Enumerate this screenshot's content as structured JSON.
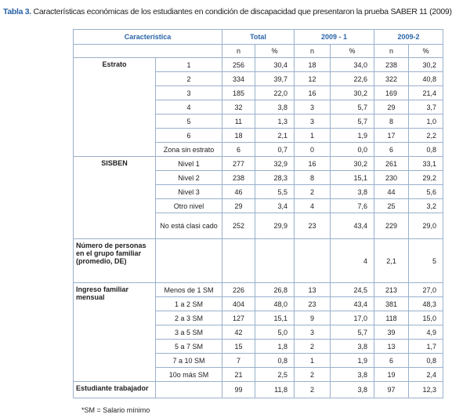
{
  "title": {
    "label": "Tabla 3.",
    "text": "Características económicas de los estudiantes en condición de discapacidad que presentaron la prueba SABER 11 (2009)"
  },
  "table": {
    "header": [
      "Característica",
      "Total",
      "2009 - 1",
      "2009-2"
    ],
    "subheader": [
      "n",
      "%",
      "n",
      "%",
      "n",
      "%"
    ],
    "groups": [
      {
        "label": "Estrato",
        "rows": [
          {
            "label": "1",
            "cells": [
              "256",
              "30,4",
              "18",
              "34,0",
              "238",
              "30,2"
            ]
          },
          {
            "label": "2",
            "cells": [
              "334",
              "39,7",
              "12",
              "22,6",
              "322",
              "40,8"
            ]
          },
          {
            "label": "3",
            "cells": [
              "185",
              "22,0",
              "16",
              "30,2",
              "169",
              "21,4"
            ]
          },
          {
            "label": "4",
            "cells": [
              "32",
              "3,8",
              "3",
              "5,7",
              "29",
              "3,7"
            ]
          },
          {
            "label": "5",
            "cells": [
              "11",
              "1,3",
              "3",
              "5,7",
              "8",
              "1,0"
            ]
          },
          {
            "label": "6",
            "cells": [
              "18",
              "2,1",
              "1",
              "1,9",
              "17",
              "2,2"
            ]
          },
          {
            "label": "Zona sin estrato",
            "cells": [
              "6",
              "0,7",
              "0",
              "0,0",
              "6",
              "0,8"
            ]
          }
        ]
      },
      {
        "label": "SISBEN",
        "rows": [
          {
            "label": "Nivel 1",
            "cells": [
              "277",
              "32,9",
              "16",
              "30,2",
              "261",
              "33,1"
            ]
          },
          {
            "label": "Nivel 2",
            "cells": [
              "238",
              "28,3",
              "8",
              "15,1",
              "230",
              "29,2"
            ]
          },
          {
            "label": "Nivel 3",
            "cells": [
              "46",
              "5,5",
              "2",
              "3,8",
              "44",
              "5,6"
            ]
          },
          {
            "label": "Otro nivel",
            "cells": [
              "29",
              "3,4",
              "4",
              "7,6",
              "25",
              "3,2"
            ]
          },
          {
            "label": "No está clasi cado",
            "cells": [
              "252",
              "29,9",
              "23",
              "43,4",
              "229",
              "29,0"
            ]
          }
        ]
      },
      {
        "label": "Número de personas en el grupo familiar (promedio, DE)",
        "rows": [
          {
            "cells": [
              null,
              null,
              null,
              "4",
              "2,1",
              "5"
            ]
          }
        ]
      },
      {
        "label": "Ingreso familiar mensual",
        "rows": [
          {
            "label": "Menos de 1 SM",
            "cells": [
              "226",
              "26,8",
              "13",
              "24,5",
              "213",
              "27,0"
            ]
          },
          {
            "label": "1 a 2 SM",
            "cells": [
              "404",
              "48,0",
              "23",
              "43,4",
              "381",
              "48,3"
            ]
          },
          {
            "label": "2 a 3 SM",
            "cells": [
              "127",
              "15,1",
              "9",
              "17,0",
              "118",
              "15,0"
            ]
          },
          {
            "label": "3 a 5 SM",
            "cells": [
              "42",
              "5,0",
              "3",
              "5,7",
              "39",
              "4,9"
            ]
          },
          {
            "label": "5 a 7 SM",
            "cells": [
              "15",
              "1,8",
              "2",
              "3,8",
              "13",
              "1,7"
            ]
          },
          {
            "label": "7 a 10 SM",
            "cells": [
              "7",
              "0,8",
              "1",
              "1,9",
              "6",
              "0,8"
            ]
          },
          {
            "label": "10o más SM",
            "cells": [
              "21",
              "2,5",
              "2",
              "3,8",
              "19",
              "2,4"
            ]
          }
        ]
      },
      {
        "label": "Estudiante trabajador",
        "rows": [
          {
            "cells": [
              "99",
              "11,8",
              "2",
              "3,8",
              "97",
              "12,3"
            ]
          }
        ]
      }
    ]
  },
  "footnote": "*SM = Salario mínimo"
}
